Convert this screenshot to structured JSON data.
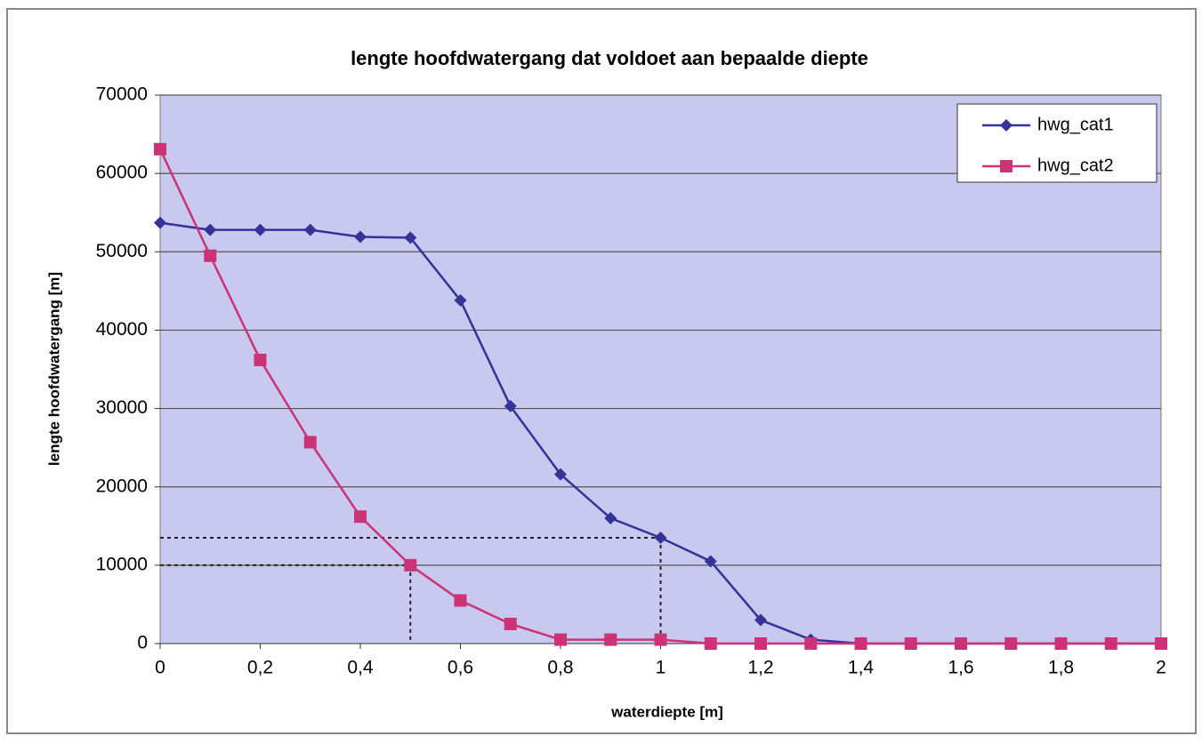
{
  "chart_data": {
    "type": "line",
    "title": "lengte hoofdwatergang dat voldoet aan bepaalde diepte",
    "x_label": "waterdiepte [m]",
    "y_label": "lengte hoofdwatergang [m]",
    "x": [
      0,
      0.1,
      0.2,
      0.3,
      0.4,
      0.5,
      0.6,
      0.7,
      0.8,
      0.9,
      1,
      1.1,
      1.2,
      1.3,
      1.4,
      1.5,
      1.6,
      1.7,
      1.8,
      1.9,
      2
    ],
    "series": [
      {
        "name": "hwg_cat1",
        "color": "#333399",
        "marker": "diamond",
        "values": [
          53700,
          52800,
          52800,
          52800,
          51900,
          51800,
          43800,
          30300,
          21600,
          16000,
          13500,
          10500,
          3000,
          500,
          0,
          0,
          0,
          0,
          0,
          0,
          0
        ]
      },
      {
        "name": "hwg_cat2",
        "color": "#cc3377",
        "marker": "square",
        "values": [
          63100,
          49500,
          36200,
          25700,
          16200,
          10000,
          5500,
          2500,
          500,
          500,
          500,
          0,
          0,
          0,
          0,
          0,
          0,
          0,
          0,
          0,
          0
        ]
      }
    ],
    "reference_lines": [
      {
        "x": 0.5,
        "y": 10000
      },
      {
        "x": 1,
        "y": 13500
      }
    ],
    "xlim": [
      0,
      2
    ],
    "xticks": [
      0,
      {
        "value": 0.2,
        "label": "0,2"
      },
      {
        "value": 0.4,
        "label": "0,4"
      },
      {
        "value": 0.6,
        "label": "0,6"
      },
      {
        "value": 0.8,
        "label": "0,8"
      },
      1,
      {
        "value": 1.2,
        "label": "1,2"
      },
      {
        "value": 1.4,
        "label": "1,4"
      },
      {
        "value": 1.6,
        "label": "1,6"
      },
      {
        "value": 1.8,
        "label": "1,8"
      },
      2
    ],
    "ylim": [
      0,
      70000
    ],
    "yticks": [
      0,
      10000,
      20000,
      30000,
      40000,
      50000,
      60000,
      70000
    ],
    "grid": true,
    "legend": "upper right",
    "plot_background": "#c9c8ef"
  }
}
